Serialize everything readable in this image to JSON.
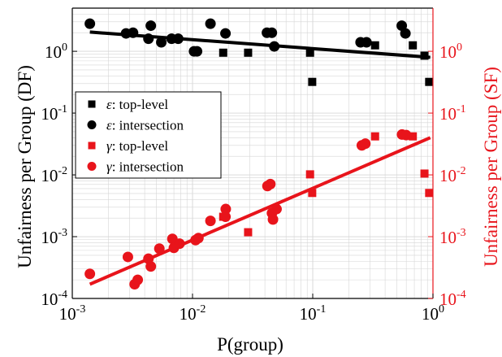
{
  "colors": {
    "df": "#000000",
    "sf": "#e8141b",
    "grid": "#d6d6d6",
    "legend_border": "#000000"
  },
  "chart_data": {
    "type": "scatter",
    "scale": "log-log",
    "grid": true,
    "xlabel": "P(group)",
    "ylabel_left": "Unfairness per Group (DF)",
    "ylabel_right": "Unfairness per Group (SF)",
    "xlim": [
      0.001,
      1
    ],
    "ylim": [
      0.0001,
      5
    ],
    "xticks": [
      {
        "value": 0.001,
        "base": "10",
        "exp": "-3"
      },
      {
        "value": 0.01,
        "base": "10",
        "exp": "-2"
      },
      {
        "value": 0.1,
        "base": "10",
        "exp": "-1"
      },
      {
        "value": 1,
        "base": "10",
        "exp": "0"
      }
    ],
    "yticks": [
      {
        "value": 0.0001,
        "base": "10",
        "exp": "-4"
      },
      {
        "value": 0.001,
        "base": "10",
        "exp": "-3"
      },
      {
        "value": 0.01,
        "base": "10",
        "exp": "-2"
      },
      {
        "value": 0.1,
        "base": "10",
        "exp": "-1"
      },
      {
        "value": 1,
        "base": "10",
        "exp": "0"
      }
    ],
    "legend_position": "center-left",
    "series": [
      {
        "name": "top-level",
        "greek": "ε",
        "color": "#000000",
        "marker": "square",
        "x": [
          0.018,
          0.029,
          0.095,
          0.099,
          0.33,
          0.68,
          0.85,
          0.93
        ],
        "y": [
          0.95,
          0.95,
          0.95,
          0.32,
          1.25,
          1.25,
          0.85,
          0.32
        ]
      },
      {
        "name": "intersection",
        "greek": "ε",
        "color": "#000000",
        "marker": "circle",
        "x": [
          0.0014,
          0.0028,
          0.0032,
          0.0043,
          0.0045,
          0.0055,
          0.0067,
          0.0076,
          0.0103,
          0.0109,
          0.0141,
          0.0188,
          0.0416,
          0.0457,
          0.0479,
          0.25,
          0.28,
          0.55,
          0.59
        ],
        "y": [
          2.8,
          1.95,
          2.0,
          1.6,
          2.6,
          1.4,
          1.6,
          1.6,
          1.0,
          1.0,
          2.8,
          1.95,
          2.0,
          2.0,
          1.2,
          1.4,
          1.4,
          2.6,
          1.95
        ]
      },
      {
        "name": "top-level",
        "greek": "γ",
        "color": "#e8141b",
        "marker": "square",
        "x": [
          0.018,
          0.029,
          0.095,
          0.099,
          0.33,
          0.68,
          0.85,
          0.93
        ],
        "y": [
          0.0021,
          0.00118,
          0.0102,
          0.0051,
          0.042,
          0.042,
          0.0105,
          0.0051
        ]
      },
      {
        "name": "intersection",
        "greek": "γ",
        "color": "#e8141b",
        "marker": "circle",
        "x": [
          0.0014,
          0.0029,
          0.0033,
          0.0035,
          0.0043,
          0.0045,
          0.0053,
          0.0068,
          0.007,
          0.0078,
          0.0106,
          0.0112,
          0.0141,
          0.0188,
          0.0189,
          0.042,
          0.0444,
          0.0458,
          0.0467,
          0.05,
          0.256,
          0.274,
          0.553,
          0.599
        ],
        "y": [
          0.00025,
          0.00047,
          0.00017,
          0.0002,
          0.00044,
          0.00033,
          0.00064,
          0.00092,
          0.00066,
          0.00077,
          0.00088,
          0.00095,
          0.0018,
          0.0021,
          0.0028,
          0.0066,
          0.0071,
          0.0024,
          0.0019,
          0.0028,
          0.03,
          0.032,
          0.045,
          0.044
        ]
      }
    ],
    "fits": [
      {
        "name": "DF fit",
        "color": "#000000",
        "x": [
          0.0014,
          0.95
        ],
        "y": [
          2.05,
          0.8
        ]
      },
      {
        "name": "SF fit",
        "color": "#e8141b",
        "x": [
          0.0014,
          0.95
        ],
        "y": [
          0.00017,
          0.04
        ]
      }
    ]
  }
}
